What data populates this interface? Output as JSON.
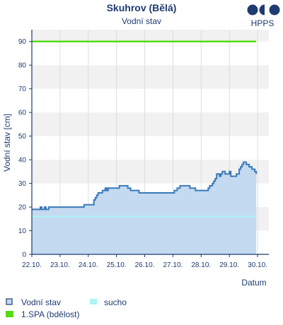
{
  "logo": {
    "text": "HPPS"
  },
  "chart_data": {
    "type": "line",
    "title": "Skuhrov (Bělá)",
    "subtitle": "Vodní stav",
    "ylabel": "Vodní stav [cm]",
    "xlabel": "Datum",
    "ylim": [
      0,
      95
    ],
    "yticks": [
      0,
      10,
      20,
      30,
      40,
      50,
      60,
      70,
      80,
      90
    ],
    "xlim": [
      0,
      8.4
    ],
    "xticks": [
      "22.10.",
      "23.10.",
      "24.10.",
      "25.10.",
      "26.10.",
      "27.10.",
      "28.10.",
      "29.10.",
      "30.10."
    ],
    "grid": true,
    "legend_position": "bottom-left",
    "colors": {
      "water": "#3a7ab8",
      "water_fill": "#c4daf0",
      "drought": "#aef5f5",
      "spa1": "#55dd11",
      "axis": "#1f3b70",
      "band": "#f1f1f1",
      "grid": "#dddddd"
    },
    "series": [
      {
        "name": "Vodní stav",
        "type": "area",
        "x": [
          0,
          0.15,
          0.2,
          0.3,
          0.35,
          0.45,
          0.5,
          0.6,
          0.65,
          0.8,
          0.9,
          1.2,
          1.5,
          1.8,
          1.85,
          1.9,
          2.0,
          2.2,
          2.25,
          2.3,
          2.35,
          2.4,
          2.5,
          2.55,
          2.6,
          2.65,
          2.7,
          2.75,
          2.8,
          2.85,
          2.9,
          3.0,
          3.05,
          3.1,
          3.2,
          3.3,
          3.4,
          3.45,
          3.5,
          3.6,
          3.8,
          4.0,
          4.5,
          5.0,
          5.05,
          5.1,
          5.15,
          5.2,
          5.25,
          5.3,
          5.4,
          5.6,
          5.7,
          5.8,
          6.0,
          6.1,
          6.2,
          6.25,
          6.3,
          6.4,
          6.45,
          6.5,
          6.55,
          6.6,
          6.65,
          6.7,
          6.75,
          6.8,
          6.85,
          6.9,
          6.95,
          7.0,
          7.05,
          7.1,
          7.15,
          7.2,
          7.25,
          7.3,
          7.35,
          7.4,
          7.45,
          7.5,
          7.55,
          7.6,
          7.65,
          7.7,
          7.75,
          7.8,
          7.85,
          7.9,
          7.95
        ],
        "values": [
          19,
          19,
          19,
          20,
          19,
          20,
          19,
          20,
          20,
          20,
          20,
          20,
          20,
          20,
          21,
          21,
          21,
          23,
          24,
          25,
          26,
          26,
          27,
          27,
          28,
          27,
          28,
          28,
          28,
          28,
          28,
          28,
          28,
          29,
          29,
          29,
          28,
          28,
          27,
          27,
          26,
          26,
          26,
          26,
          27,
          27,
          28,
          28,
          29,
          29,
          29,
          28,
          28,
          27,
          27,
          27,
          27,
          28,
          29,
          30,
          31,
          32,
          34,
          34,
          33,
          34,
          35,
          35,
          34,
          34,
          34,
          35,
          33,
          33,
          33,
          33,
          34,
          34,
          36,
          37,
          38,
          39,
          39,
          38,
          38,
          37,
          37,
          36,
          36,
          35,
          34
        ]
      },
      {
        "name": "sucho",
        "type": "line",
        "x": [
          0,
          7.95
        ],
        "values": [
          16,
          16
        ]
      },
      {
        "name": "1.SPA (bdělost)",
        "type": "line",
        "x": [
          0,
          7.95
        ],
        "values": [
          90,
          90
        ]
      }
    ]
  }
}
